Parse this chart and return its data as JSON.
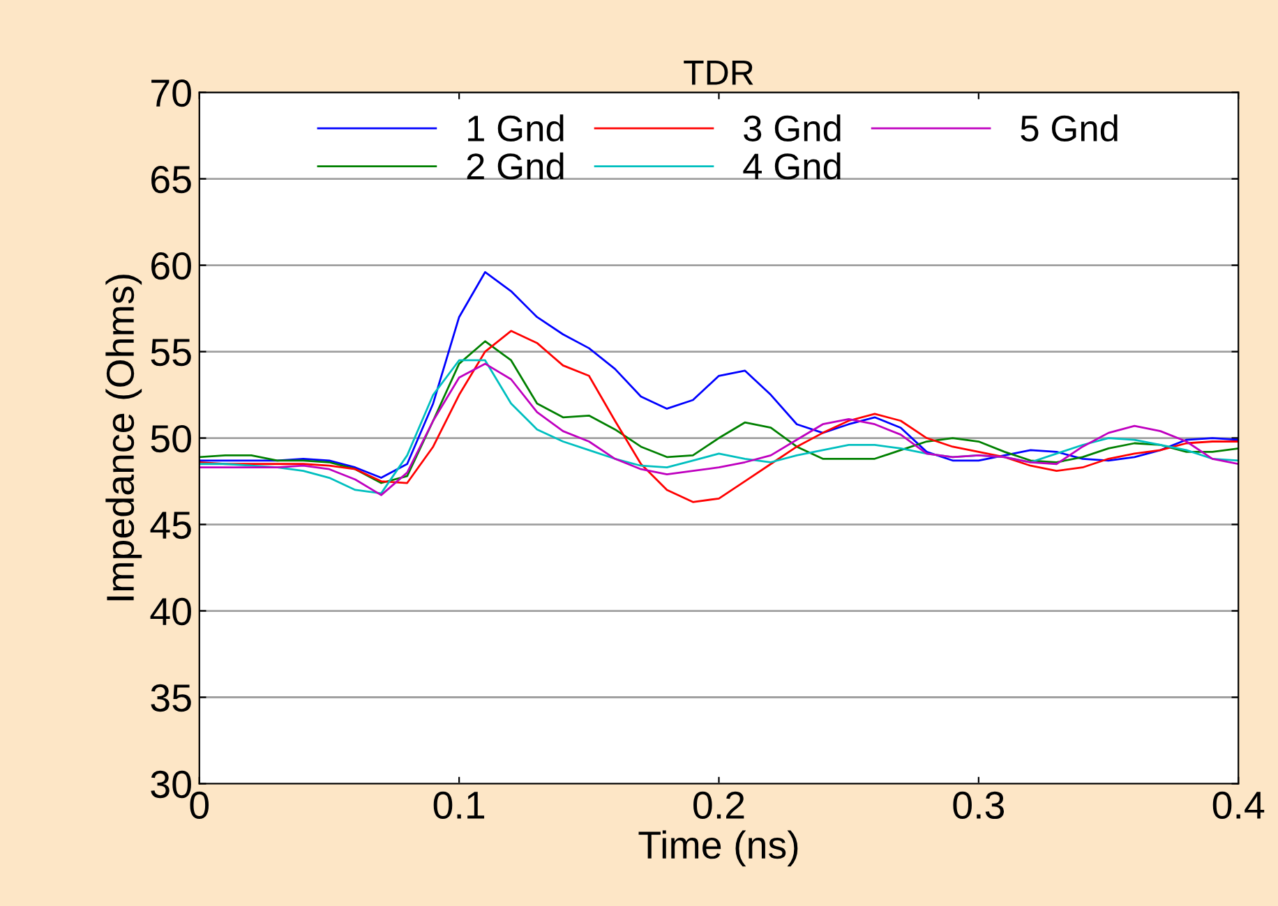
{
  "chart_data": {
    "type": "line",
    "title": "TDR",
    "xlabel": "Time (ns)",
    "ylabel": "Impedance (Ohms)",
    "x": [
      0,
      0.01,
      0.02,
      0.03,
      0.04,
      0.05,
      0.06,
      0.07,
      0.08,
      0.09,
      0.1,
      0.11,
      0.12,
      0.13,
      0.14,
      0.15,
      0.16,
      0.17,
      0.18,
      0.19,
      0.2,
      0.21,
      0.22,
      0.23,
      0.24,
      0.25,
      0.26,
      0.27,
      0.28,
      0.29,
      0.3,
      0.31,
      0.32,
      0.33,
      0.34,
      0.35,
      0.36,
      0.37,
      0.38,
      0.39,
      0.4
    ],
    "series": [
      {
        "name": "1 Gnd",
        "color": "#0000ff",
        "values": [
          48.7,
          48.7,
          48.7,
          48.7,
          48.8,
          48.7,
          48.3,
          47.7,
          48.5,
          52,
          57,
          59.6,
          58.5,
          57,
          56,
          55.2,
          54,
          52.4,
          51.7,
          52.2,
          53.6,
          53.9,
          52.5,
          50.8,
          50.3,
          50.8,
          51.2,
          50.6,
          49.2,
          48.7,
          48.7,
          49,
          49.3,
          49.2,
          48.8,
          48.7,
          48.9,
          49.3,
          49.9,
          50,
          49.9
        ]
      },
      {
        "name": "2 Gnd",
        "color": "#008000",
        "values": [
          48.9,
          49,
          49,
          48.7,
          48.7,
          48.6,
          48.2,
          47.4,
          47.8,
          51,
          54.3,
          55.6,
          54.5,
          52,
          51.2,
          51.3,
          50.5,
          49.5,
          48.9,
          49,
          50,
          50.9,
          50.6,
          49.5,
          48.8,
          48.8,
          48.8,
          49.3,
          49.8,
          50,
          49.8,
          49.2,
          48.7,
          48.6,
          48.9,
          49.4,
          49.7,
          49.6,
          49.2,
          49.2,
          49.4
        ]
      },
      {
        "name": "3 Gnd",
        "color": "#ff0000",
        "values": [
          48.6,
          48.5,
          48.5,
          48.5,
          48.5,
          48.4,
          48.2,
          47.5,
          47.4,
          49.5,
          52.5,
          55,
          56.2,
          55.5,
          54.2,
          53.6,
          51,
          48.5,
          47,
          46.3,
          46.5,
          47.5,
          48.5,
          49.5,
          50.3,
          51,
          51.4,
          51,
          50,
          49.5,
          49.2,
          48.9,
          48.4,
          48.1,
          48.3,
          48.8,
          49.1,
          49.3,
          49.7,
          49.8,
          49.8
        ]
      },
      {
        "name": "4 Gnd",
        "color": "#00bfbf",
        "values": [
          48.5,
          48.5,
          48.4,
          48.3,
          48.1,
          47.7,
          47,
          46.8,
          49,
          52.5,
          54.5,
          54.5,
          52,
          50.5,
          49.8,
          49.3,
          48.8,
          48.4,
          48.3,
          48.7,
          49.1,
          48.8,
          48.6,
          49,
          49.3,
          49.6,
          49.6,
          49.4,
          49.1,
          48.9,
          49,
          48.9,
          48.6,
          49.1,
          49.6,
          50,
          49.9,
          49.6,
          49.3,
          48.8,
          48.7
        ]
      },
      {
        "name": "5 Gnd",
        "color": "#bf00bf",
        "values": [
          48.3,
          48.3,
          48.3,
          48.3,
          48.4,
          48.2,
          47.6,
          46.7,
          48,
          51,
          53.5,
          54.3,
          53.4,
          51.5,
          50.4,
          49.8,
          48.8,
          48.2,
          47.9,
          48.1,
          48.3,
          48.6,
          49,
          49.9,
          50.8,
          51.1,
          50.8,
          50.2,
          49.1,
          48.9,
          49,
          48.9,
          48.6,
          48.5,
          49.5,
          50.3,
          50.7,
          50.4,
          49.8,
          48.8,
          48.5
        ]
      }
    ],
    "xlim": [
      0,
      0.4
    ],
    "xticks": [
      0,
      0.1,
      0.2,
      0.3,
      0.4
    ],
    "ylim": [
      30,
      70
    ],
    "yticks": [
      30,
      35,
      40,
      45,
      50,
      55,
      60,
      65,
      70
    ],
    "grid": "y",
    "legend": "top",
    "marker": "none",
    "line_style": "solid"
  }
}
